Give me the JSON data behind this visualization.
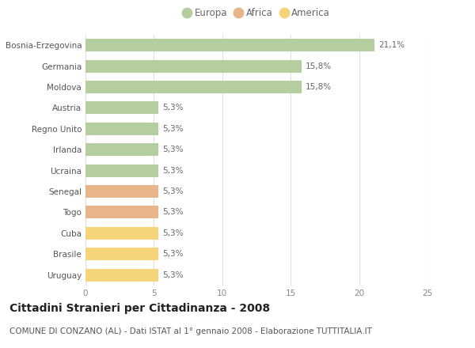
{
  "categories": [
    "Bosnia-Erzegovina",
    "Germania",
    "Moldova",
    "Austria",
    "Regno Unito",
    "Irlanda",
    "Ucraina",
    "Senegal",
    "Togo",
    "Cuba",
    "Brasile",
    "Uruguay"
  ],
  "values": [
    21.1,
    15.8,
    15.8,
    5.3,
    5.3,
    5.3,
    5.3,
    5.3,
    5.3,
    5.3,
    5.3,
    5.3
  ],
  "labels": [
    "21,1%",
    "15,8%",
    "15,8%",
    "5,3%",
    "5,3%",
    "5,3%",
    "5,3%",
    "5,3%",
    "5,3%",
    "5,3%",
    "5,3%",
    "5,3%"
  ],
  "continent": [
    "Europa",
    "Europa",
    "Europa",
    "Europa",
    "Europa",
    "Europa",
    "Europa",
    "Africa",
    "Africa",
    "America",
    "America",
    "America"
  ],
  "colors": {
    "Europa": "#b5ceA0",
    "Africa": "#e8b48a",
    "America": "#f5d47a"
  },
  "xlim": [
    0,
    25
  ],
  "xticks": [
    0,
    5,
    10,
    15,
    20,
    25
  ],
  "title": "Cittadini Stranieri per Cittadinanza - 2008",
  "subtitle": "COMUNE DI CONZANO (AL) - Dati ISTAT al 1° gennaio 2008 - Elaborazione TUTTITALIA.IT",
  "background_color": "#ffffff",
  "grid_color": "#e0e0e0",
  "bar_height": 0.6,
  "title_fontsize": 10,
  "subtitle_fontsize": 7.5,
  "label_fontsize": 7.5,
  "tick_fontsize": 7.5,
  "legend_fontsize": 8.5,
  "legend_items": [
    "Europa",
    "Africa",
    "America"
  ],
  "legend_colors_list": [
    "#b5ceA0",
    "#e8b48a",
    "#f5d47a"
  ]
}
